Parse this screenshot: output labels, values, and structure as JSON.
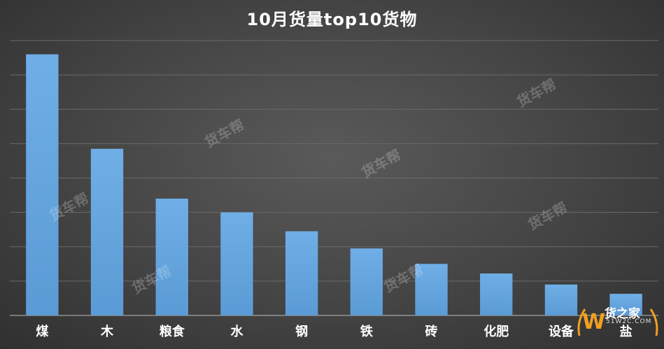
{
  "chart_data": {
    "type": "bar",
    "title": "10月货量top10货物",
    "categories": [
      "煤",
      "木",
      "粮食",
      "水",
      "钢",
      "铁",
      "砖",
      "化肥",
      "设备",
      "盐"
    ],
    "values": [
      7.6,
      4.85,
      3.4,
      3.0,
      2.45,
      1.95,
      1.5,
      1.22,
      0.9,
      0.63
    ],
    "ylim": [
      0,
      8
    ],
    "grid": true,
    "colors": {
      "bar": "#5b9bd5",
      "bar_light": "#6faee6"
    }
  },
  "watermarks": [
    "货车帮",
    "货车帮",
    "货车帮",
    "货车帮",
    "货车帮",
    "货车帮",
    "货车帮"
  ],
  "logo": {
    "name": "货之家",
    "url": "51W2C.COM",
    "letter": "W"
  }
}
